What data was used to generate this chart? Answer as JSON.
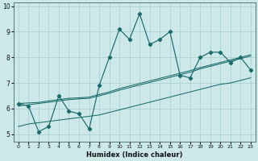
{
  "xlabel": "Humidex (Indice chaleur)",
  "bg_color": "#cce8e8",
  "grid_color": "#a8cece",
  "line_color": "#1a6b6b",
  "x_data": [
    0,
    1,
    2,
    3,
    4,
    5,
    6,
    7,
    8,
    9,
    10,
    11,
    12,
    13,
    14,
    15,
    16,
    17,
    18,
    19,
    20,
    21,
    22,
    23
  ],
  "y_main": [
    6.2,
    6.1,
    5.1,
    5.3,
    6.5,
    5.9,
    5.8,
    5.2,
    6.9,
    8.0,
    9.1,
    8.7,
    9.7,
    8.5,
    8.7,
    9.0,
    7.3,
    7.2,
    8.0,
    8.2,
    8.2,
    7.8,
    8.0,
    7.5
  ],
  "y_trend_low": [
    5.3,
    5.4,
    5.45,
    5.5,
    5.55,
    5.6,
    5.65,
    5.7,
    5.75,
    5.85,
    5.95,
    6.05,
    6.15,
    6.25,
    6.35,
    6.45,
    6.55,
    6.65,
    6.75,
    6.85,
    6.95,
    7.0,
    7.1,
    7.2
  ],
  "y_trend_mid1": [
    6.1,
    6.15,
    6.2,
    6.25,
    6.3,
    6.35,
    6.38,
    6.4,
    6.5,
    6.6,
    6.72,
    6.82,
    6.92,
    7.02,
    7.12,
    7.22,
    7.32,
    7.42,
    7.55,
    7.65,
    7.75,
    7.85,
    7.95,
    8.05
  ],
  "y_trend_mid2": [
    6.2,
    6.22,
    6.24,
    6.3,
    6.35,
    6.4,
    6.42,
    6.45,
    6.55,
    6.65,
    6.78,
    6.88,
    6.98,
    7.08,
    7.18,
    7.28,
    7.38,
    7.48,
    7.6,
    7.7,
    7.8,
    7.9,
    8.0,
    8.1
  ],
  "ylim": [
    4.7,
    10.15
  ],
  "xlim": [
    -0.5,
    23.5
  ],
  "yticks": [
    5,
    6,
    7,
    8,
    9,
    10
  ],
  "xticks": [
    0,
    1,
    2,
    3,
    4,
    5,
    6,
    7,
    8,
    9,
    10,
    11,
    12,
    13,
    14,
    15,
    16,
    17,
    18,
    19,
    20,
    21,
    22,
    23
  ]
}
